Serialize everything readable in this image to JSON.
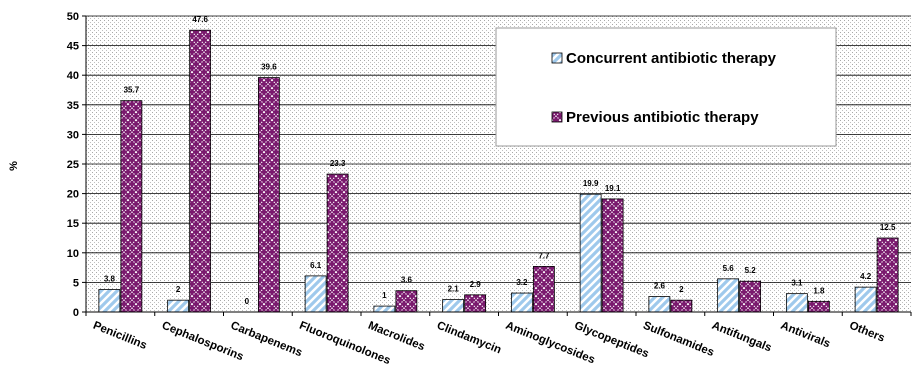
{
  "chart_data": {
    "type": "bar",
    "ylabel": "%",
    "ylim": [
      0,
      50
    ],
    "yticks": [
      0,
      5,
      10,
      15,
      20,
      25,
      30,
      35,
      40,
      45,
      50
    ],
    "grid": true,
    "legend_position": "top-right",
    "categories": [
      "Penicillins",
      "Cephalosporins",
      "Carbapenems",
      "Fluoroquinolones",
      "Macrolides",
      "Clindamycin",
      "Aminoglycosides",
      "Glycopeptides",
      "Sulfonamides",
      "Antifungals",
      "Antivirals",
      "Others"
    ],
    "series": [
      {
        "name": "Concurrent antibiotic therapy",
        "values": [
          3.8,
          2,
          0,
          6.1,
          1,
          2.1,
          3.2,
          19.9,
          2.6,
          5.6,
          3.1,
          4.2
        ],
        "color": "#9fc9ec",
        "pattern": "diagonal-stripes"
      },
      {
        "name": "Previous antibiotic therapy",
        "values": [
          35.7,
          47.6,
          39.6,
          23.3,
          3.6,
          2.9,
          7.7,
          19.1,
          2,
          5.2,
          1.8,
          12.5
        ],
        "color": "#7a1a6e",
        "pattern": "diamond-lattice"
      }
    ],
    "plot_background": "dotted-gray"
  }
}
